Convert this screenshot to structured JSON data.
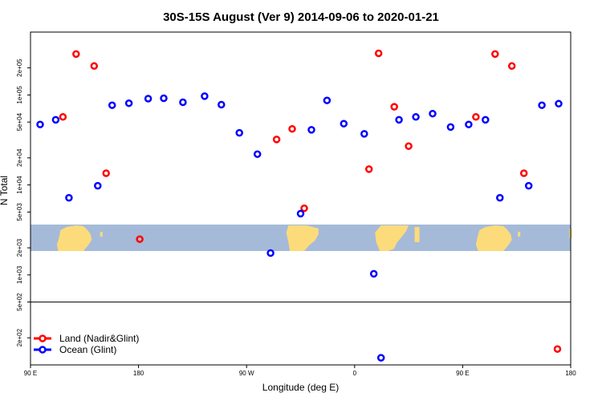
{
  "chart_data": {
    "type": "scatter",
    "title": "30S-15S August (Ver 9)   2014-09-06 to 2020-01-21",
    "xlabel": "Longitude (deg E)",
    "ylabel": "N Total",
    "x_axis_scale": "longitude, repeating 90 E to 180 (450 deg span)",
    "xlim": [
      90,
      540
    ],
    "ylim_log": [
      100,
      500000
    ],
    "x_ticks": [
      {
        "value": 90,
        "label": "90 E"
      },
      {
        "value": 180,
        "label": "180"
      },
      {
        "value": 270,
        "label": "90 W"
      },
      {
        "value": 360,
        "label": "0"
      },
      {
        "value": 450,
        "label": "90 E"
      },
      {
        "value": 540,
        "label": "180"
      }
    ],
    "y_ticks": [
      {
        "value": 200,
        "label": "2e+02"
      },
      {
        "value": 500,
        "label": "5e+02"
      },
      {
        "value": 1000,
        "label": "1e+03"
      },
      {
        "value": 2000,
        "label": "2e+03"
      },
      {
        "value": 5000,
        "label": "5e+03"
      },
      {
        "value": 10000,
        "label": "1e+04"
      },
      {
        "value": 20000,
        "label": "2e+04"
      },
      {
        "value": 50000,
        "label": "5e+04"
      },
      {
        "value": 100000,
        "label": "1e+05"
      },
      {
        "value": 200000,
        "label": "2e+05"
      }
    ],
    "reference_line_y": 500,
    "map_strip": {
      "description": "land/ocean map of 30S-15S latitude band",
      "ocean_color": "#a5bad8",
      "land_color": "#fcdb7a"
    },
    "series": [
      {
        "name": "Land (Nadir&Glint)",
        "color": "#ff0000",
        "points": [
          {
            "x": 117,
            "y": 57000
          },
          {
            "x": 128,
            "y": 285000
          },
          {
            "x": 143,
            "y": 210000
          },
          {
            "x": 153,
            "y": 13500
          },
          {
            "x": 181,
            "y": 2500
          },
          {
            "x": 295,
            "y": 32000
          },
          {
            "x": 308,
            "y": 42000
          },
          {
            "x": 318,
            "y": 5500
          },
          {
            "x": 372,
            "y": 15000
          },
          {
            "x": 380,
            "y": 290000
          },
          {
            "x": 393,
            "y": 74000
          },
          {
            "x": 405,
            "y": 27000
          },
          {
            "x": 461,
            "y": 57000
          },
          {
            "x": 477,
            "y": 285000
          },
          {
            "x": 491,
            "y": 210000
          },
          {
            "x": 501,
            "y": 13500
          },
          {
            "x": 529,
            "y": 150
          }
        ]
      },
      {
        "name": "Ocean (Glint)",
        "color": "#0000ff",
        "points": [
          {
            "x": 98,
            "y": 47000
          },
          {
            "x": 111,
            "y": 53000
          },
          {
            "x": 122,
            "y": 7200
          },
          {
            "x": 146,
            "y": 9800
          },
          {
            "x": 158,
            "y": 77000
          },
          {
            "x": 172,
            "y": 81000
          },
          {
            "x": 188,
            "y": 91000
          },
          {
            "x": 201,
            "y": 92000
          },
          {
            "x": 217,
            "y": 83000
          },
          {
            "x": 235,
            "y": 97000
          },
          {
            "x": 249,
            "y": 78000
          },
          {
            "x": 264,
            "y": 38000
          },
          {
            "x": 279,
            "y": 22000
          },
          {
            "x": 290,
            "y": 1750
          },
          {
            "x": 315,
            "y": 4800
          },
          {
            "x": 324,
            "y": 41000
          },
          {
            "x": 337,
            "y": 87000
          },
          {
            "x": 351,
            "y": 48000
          },
          {
            "x": 368,
            "y": 37000
          },
          {
            "x": 376,
            "y": 1030
          },
          {
            "x": 382,
            "y": 120
          },
          {
            "x": 397,
            "y": 53000
          },
          {
            "x": 411,
            "y": 57000
          },
          {
            "x": 425,
            "y": 62000
          },
          {
            "x": 440,
            "y": 44000
          },
          {
            "x": 455,
            "y": 47000
          },
          {
            "x": 469,
            "y": 53000
          },
          {
            "x": 481,
            "y": 7200
          },
          {
            "x": 505,
            "y": 9800
          },
          {
            "x": 516,
            "y": 77000
          },
          {
            "x": 530,
            "y": 80000
          }
        ]
      }
    ],
    "legend": {
      "position": "bottom-left",
      "entries": [
        "Land (Nadir&Glint)",
        "Ocean (Glint)"
      ]
    }
  }
}
